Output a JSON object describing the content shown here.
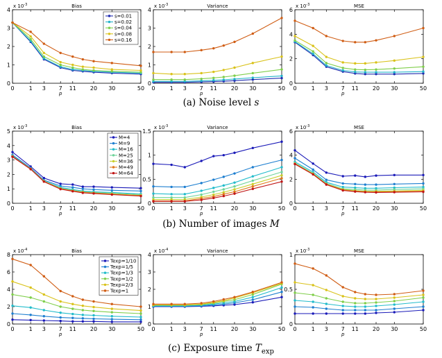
{
  "chart_data": [
    {
      "type": "line",
      "title": "Bias",
      "exponent": "x 10",
      "exponent_power": "-3",
      "xlabel": "p",
      "x": [
        0,
        1,
        3,
        7,
        11,
        15,
        20,
        30,
        50
      ],
      "xticks": [
        "0",
        "1",
        "3",
        "7",
        "11",
        "20",
        "30",
        "50"
      ],
      "ylim": [
        0,
        4
      ],
      "yticks": [
        0,
        1,
        2,
        3,
        4
      ],
      "legend": "top-right",
      "series": [
        {
          "name": "s=0.01",
          "color": "#1f2bb0",
          "values": [
            3.3,
            2.25,
            1.3,
            0.85,
            0.7,
            0.65,
            0.6,
            0.55,
            0.5
          ]
        },
        {
          "name": "s=0.02",
          "color": "#22b3c9",
          "values": [
            3.3,
            2.3,
            1.35,
            0.9,
            0.75,
            0.7,
            0.65,
            0.6,
            0.55
          ]
        },
        {
          "name": "s=0.04",
          "color": "#7fce4a",
          "values": [
            3.3,
            2.4,
            1.45,
            1.0,
            0.85,
            0.75,
            0.7,
            0.65,
            0.6
          ]
        },
        {
          "name": "s=0.08",
          "color": "#d9c21a",
          "values": [
            3.3,
            2.55,
            1.65,
            1.15,
            1.0,
            0.9,
            0.85,
            0.75,
            0.7
          ]
        },
        {
          "name": "s=0.16",
          "color": "#d05d14",
          "values": [
            3.3,
            2.8,
            2.15,
            1.65,
            1.45,
            1.3,
            1.2,
            1.1,
            0.95
          ]
        }
      ]
    },
    {
      "type": "line",
      "title": "Variance",
      "exponent": "x 10",
      "exponent_power": "-3",
      "xlabel": "p",
      "x": [
        0,
        1,
        3,
        7,
        11,
        15,
        20,
        30,
        50
      ],
      "xticks": [
        "0",
        "1",
        "3",
        "7",
        "11",
        "20",
        "30",
        "50"
      ],
      "ylim": [
        0,
        4
      ],
      "yticks": [
        0,
        1,
        2,
        3,
        4
      ],
      "series": [
        {
          "color": "#1f2bb0",
          "values": [
            0.05,
            0.05,
            0.05,
            0.07,
            0.09,
            0.11,
            0.14,
            0.2,
            0.28
          ]
        },
        {
          "color": "#22b3c9",
          "values": [
            0.1,
            0.1,
            0.1,
            0.13,
            0.16,
            0.19,
            0.23,
            0.3,
            0.4
          ]
        },
        {
          "color": "#7fce4a",
          "values": [
            0.2,
            0.2,
            0.2,
            0.24,
            0.29,
            0.34,
            0.41,
            0.55,
            0.75
          ]
        },
        {
          "color": "#d9c21a",
          "values": [
            0.55,
            0.5,
            0.5,
            0.55,
            0.62,
            0.72,
            0.85,
            1.1,
            1.45
          ]
        },
        {
          "color": "#d05d14",
          "values": [
            1.7,
            1.7,
            1.7,
            1.8,
            1.9,
            2.05,
            2.25,
            2.7,
            3.55
          ]
        }
      ]
    },
    {
      "type": "line",
      "title": "MSE",
      "exponent": "x 10",
      "exponent_power": "-3",
      "xlabel": "p",
      "x": [
        0,
        1,
        3,
        7,
        11,
        15,
        20,
        30,
        50
      ],
      "xticks": [
        "0",
        "1",
        "3",
        "7",
        "11",
        "20",
        "30",
        "50"
      ],
      "ylim": [
        0,
        6
      ],
      "yticks": [
        0,
        2,
        4,
        6
      ],
      "series": [
        {
          "color": "#1f2bb0",
          "values": [
            3.35,
            2.3,
            1.35,
            0.95,
            0.8,
            0.75,
            0.75,
            0.75,
            0.8
          ]
        },
        {
          "color": "#22b3c9",
          "values": [
            3.4,
            2.4,
            1.45,
            1.05,
            0.92,
            0.9,
            0.9,
            0.9,
            0.95
          ]
        },
        {
          "color": "#7fce4a",
          "values": [
            3.5,
            2.6,
            1.65,
            1.25,
            1.12,
            1.1,
            1.12,
            1.2,
            1.35
          ]
        },
        {
          "color": "#d9c21a",
          "values": [
            3.85,
            3.05,
            2.15,
            1.7,
            1.62,
            1.62,
            1.7,
            1.85,
            2.15
          ]
        },
        {
          "color": "#d05d14",
          "values": [
            5.1,
            4.5,
            3.85,
            3.45,
            3.35,
            3.35,
            3.5,
            3.85,
            4.5
          ]
        }
      ]
    },
    {
      "type": "line",
      "title": "Bias",
      "exponent": "x 10",
      "exponent_power": "-3",
      "xlabel": "p",
      "x": [
        0,
        1,
        3,
        7,
        11,
        15,
        20,
        30,
        50
      ],
      "xticks": [
        "0",
        "1",
        "3",
        "7",
        "11",
        "20",
        "30",
        "50"
      ],
      "ylim": [
        0,
        5
      ],
      "yticks": [
        0,
        1,
        2,
        3,
        4,
        5
      ],
      "legend": "top-right",
      "series": [
        {
          "name": "M=4",
          "color": "#1a1ab8",
          "values": [
            3.55,
            2.55,
            1.75,
            1.35,
            1.3,
            1.15,
            1.15,
            1.1,
            1.05
          ]
        },
        {
          "name": "M=9",
          "color": "#1e7fd0",
          "values": [
            3.35,
            2.45,
            1.6,
            1.2,
            1.1,
            1.0,
            0.95,
            0.9,
            0.85
          ]
        },
        {
          "name": "M=16",
          "color": "#22bccb",
          "values": [
            3.3,
            2.4,
            1.55,
            1.1,
            0.95,
            0.85,
            0.8,
            0.75,
            0.65
          ]
        },
        {
          "name": "M=25",
          "color": "#6ed39a",
          "values": [
            3.25,
            2.4,
            1.55,
            1.05,
            0.9,
            0.8,
            0.75,
            0.7,
            0.6
          ]
        },
        {
          "name": "M=36",
          "color": "#c8cf2a",
          "values": [
            3.25,
            2.38,
            1.52,
            1.02,
            0.87,
            0.77,
            0.72,
            0.65,
            0.55
          ]
        },
        {
          "name": "M=49",
          "color": "#e0781c",
          "values": [
            3.25,
            2.38,
            1.5,
            1.0,
            0.85,
            0.75,
            0.7,
            0.62,
            0.52
          ]
        },
        {
          "name": "M=64",
          "color": "#c01515",
          "values": [
            3.22,
            2.36,
            1.5,
            0.98,
            0.83,
            0.72,
            0.68,
            0.6,
            0.5
          ]
        }
      ]
    },
    {
      "type": "line",
      "title": "Variance",
      "exponent": "x 10",
      "exponent_power": "-3",
      "xlabel": "p",
      "x": [
        0,
        1,
        3,
        7,
        11,
        15,
        20,
        30,
        50
      ],
      "xticks": [
        "0",
        "1",
        "3",
        "7",
        "11",
        "20",
        "30",
        "50"
      ],
      "ylim": [
        0,
        1.5
      ],
      "yticks": [
        0,
        0.5,
        1,
        1.5
      ],
      "ytick_labels": [
        "0",
        "0.5",
        "1",
        "1.5"
      ],
      "series": [
        {
          "color": "#1a1ab8",
          "values": [
            0.82,
            0.8,
            0.75,
            0.88,
            0.98,
            1.0,
            1.05,
            1.15,
            1.28
          ]
        },
        {
          "color": "#1e7fd0",
          "values": [
            0.35,
            0.34,
            0.34,
            0.42,
            0.49,
            0.55,
            0.62,
            0.75,
            0.9
          ]
        },
        {
          "color": "#22bccb",
          "values": [
            0.2,
            0.19,
            0.19,
            0.26,
            0.32,
            0.37,
            0.43,
            0.56,
            0.75
          ]
        },
        {
          "color": "#6ed39a",
          "values": [
            0.12,
            0.12,
            0.12,
            0.18,
            0.24,
            0.29,
            0.35,
            0.47,
            0.65
          ]
        },
        {
          "color": "#c8cf2a",
          "values": [
            0.08,
            0.08,
            0.08,
            0.13,
            0.18,
            0.23,
            0.29,
            0.4,
            0.58
          ]
        },
        {
          "color": "#e0781c",
          "values": [
            0.05,
            0.05,
            0.05,
            0.1,
            0.14,
            0.19,
            0.24,
            0.35,
            0.52
          ]
        },
        {
          "color": "#c01515",
          "values": [
            0.04,
            0.04,
            0.04,
            0.07,
            0.11,
            0.15,
            0.2,
            0.3,
            0.45
          ]
        }
      ]
    },
    {
      "type": "line",
      "title": "MSE",
      "exponent": "x 10",
      "exponent_power": "-3",
      "xlabel": "p",
      "x": [
        0,
        1,
        3,
        7,
        11,
        15,
        20,
        30,
        50
      ],
      "xticks": [
        "0",
        "1",
        "3",
        "7",
        "11",
        "20",
        "30",
        "50"
      ],
      "ylim": [
        0,
        6
      ],
      "yticks": [
        0,
        2,
        4,
        6
      ],
      "series": [
        {
          "color": "#1a1ab8",
          "values": [
            4.4,
            3.3,
            2.55,
            2.25,
            2.3,
            2.2,
            2.3,
            2.35,
            2.35
          ]
        },
        {
          "color": "#1e7fd0",
          "values": [
            3.75,
            2.8,
            1.95,
            1.65,
            1.6,
            1.55,
            1.55,
            1.6,
            1.65
          ]
        },
        {
          "color": "#22bccb",
          "values": [
            3.45,
            2.6,
            1.75,
            1.35,
            1.3,
            1.25,
            1.25,
            1.3,
            1.35
          ]
        },
        {
          "color": "#6ed39a",
          "values": [
            3.35,
            2.5,
            1.65,
            1.2,
            1.15,
            1.1,
            1.1,
            1.15,
            1.2
          ]
        },
        {
          "color": "#c8cf2a",
          "values": [
            3.3,
            2.45,
            1.6,
            1.15,
            1.05,
            1.0,
            1.0,
            1.02,
            1.08
          ]
        },
        {
          "color": "#e0781c",
          "values": [
            3.28,
            2.42,
            1.58,
            1.1,
            1.0,
            0.95,
            0.94,
            0.96,
            1.0
          ]
        },
        {
          "color": "#c01515",
          "values": [
            3.26,
            2.4,
            1.55,
            1.07,
            0.97,
            0.92,
            0.9,
            0.92,
            0.95
          ]
        }
      ]
    },
    {
      "type": "line",
      "title": "Bias",
      "exponent": "x 10",
      "exponent_power": "-4",
      "xlabel": "p",
      "x": [
        0,
        1,
        3,
        7,
        11,
        15,
        20,
        30,
        50
      ],
      "xticks": [
        "0",
        "1",
        "3",
        "7",
        "11",
        "20",
        "30",
        "50"
      ],
      "ylim": [
        0,
        8
      ],
      "yticks": [
        0,
        2,
        4,
        6,
        8
      ],
      "legend": "top-right",
      "series": [
        {
          "name": "Texp=1/10",
          "color": "#1a1ab8",
          "values": [
            0.5,
            0.45,
            0.4,
            0.35,
            0.3,
            0.3,
            0.3,
            0.25,
            0.25
          ]
        },
        {
          "name": "Texp=1/5",
          "color": "#1e7fd0",
          "values": [
            1.2,
            1.05,
            0.9,
            0.75,
            0.7,
            0.65,
            0.6,
            0.55,
            0.5
          ]
        },
        {
          "name": "Texp=1/3",
          "color": "#22bccb",
          "values": [
            2.1,
            1.9,
            1.6,
            1.3,
            1.15,
            1.05,
            1.0,
            0.9,
            0.8
          ]
        },
        {
          "name": "Texp=1/2",
          "color": "#7fce4a",
          "values": [
            3.4,
            3.05,
            2.6,
            2.0,
            1.75,
            1.6,
            1.5,
            1.35,
            1.2
          ]
        },
        {
          "name": "Texp=2/3",
          "color": "#d9c21a",
          "values": [
            4.9,
            4.2,
            3.4,
            2.6,
            2.3,
            2.1,
            1.95,
            1.75,
            1.55
          ]
        },
        {
          "name": "Texp=1",
          "color": "#d05d14",
          "values": [
            7.5,
            6.8,
            5.5,
            3.8,
            3.2,
            2.8,
            2.6,
            2.3,
            2.0
          ]
        }
      ]
    },
    {
      "type": "line",
      "title": "Variance",
      "exponent": "x 10",
      "exponent_power": "-4",
      "xlabel": "p",
      "x": [
        0,
        1,
        3,
        7,
        11,
        15,
        20,
        30,
        50
      ],
      "xticks": [
        "0",
        "1",
        "3",
        "7",
        "11",
        "20",
        "30",
        "50"
      ],
      "ylim": [
        0,
        4
      ],
      "yticks": [
        0,
        1,
        2,
        3,
        4
      ],
      "series": [
        {
          "color": "#1a1ab8",
          "values": [
            1.0,
            1.0,
            1.0,
            1.02,
            1.05,
            1.08,
            1.12,
            1.25,
            1.55
          ]
        },
        {
          "color": "#1e7fd0",
          "values": [
            1.02,
            1.02,
            1.02,
            1.05,
            1.1,
            1.15,
            1.22,
            1.4,
            1.85
          ]
        },
        {
          "color": "#22bccb",
          "values": [
            1.05,
            1.05,
            1.05,
            1.08,
            1.15,
            1.22,
            1.3,
            1.55,
            2.1
          ]
        },
        {
          "color": "#7fce4a",
          "values": [
            1.08,
            1.08,
            1.08,
            1.12,
            1.2,
            1.3,
            1.4,
            1.7,
            2.3
          ]
        },
        {
          "color": "#d9c21a",
          "values": [
            1.1,
            1.1,
            1.1,
            1.15,
            1.25,
            1.35,
            1.5,
            1.8,
            2.35
          ]
        },
        {
          "color": "#d05d14",
          "values": [
            1.15,
            1.15,
            1.15,
            1.2,
            1.3,
            1.42,
            1.55,
            1.85,
            2.4
          ]
        }
      ]
    },
    {
      "type": "line",
      "title": "MSE",
      "exponent": "x 10",
      "exponent_power": "-3",
      "xlabel": "p",
      "x": [
        0,
        1,
        3,
        7,
        11,
        15,
        20,
        30,
        50
      ],
      "xticks": [
        "0",
        "1",
        "3",
        "7",
        "11",
        "20",
        "30",
        "50"
      ],
      "ylim": [
        0,
        1
      ],
      "yticks": [
        0,
        0.5,
        1
      ],
      "ytick_labels": [
        "0",
        "0.5",
        "1"
      ],
      "series": [
        {
          "color": "#1a1ab8",
          "values": [
            0.15,
            0.15,
            0.15,
            0.15,
            0.15,
            0.15,
            0.16,
            0.17,
            0.2
          ]
        },
        {
          "color": "#1e7fd0",
          "values": [
            0.25,
            0.24,
            0.22,
            0.2,
            0.2,
            0.2,
            0.2,
            0.22,
            0.25
          ]
        },
        {
          "color": "#22bccb",
          "values": [
            0.34,
            0.32,
            0.29,
            0.26,
            0.25,
            0.25,
            0.26,
            0.28,
            0.32
          ]
        },
        {
          "color": "#7fce4a",
          "values": [
            0.45,
            0.42,
            0.37,
            0.32,
            0.3,
            0.3,
            0.31,
            0.33,
            0.38
          ]
        },
        {
          "color": "#d9c21a",
          "values": [
            0.6,
            0.56,
            0.49,
            0.4,
            0.37,
            0.36,
            0.36,
            0.38,
            0.42
          ]
        },
        {
          "color": "#d05d14",
          "values": [
            0.87,
            0.8,
            0.7,
            0.53,
            0.46,
            0.43,
            0.42,
            0.43,
            0.48
          ]
        }
      ]
    }
  ],
  "captions": {
    "a_prefix": "(a) Noise level ",
    "a_var": "s",
    "b_prefix": "(b) Number of images ",
    "b_var": "M",
    "c_prefix": "(c) Exposure time ",
    "c_var": "T",
    "c_sub": "exp"
  }
}
